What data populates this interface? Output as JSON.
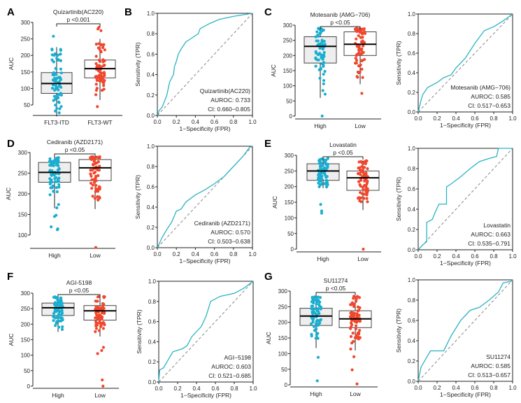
{
  "colors": {
    "high": "#1aaed0",
    "low": "#f0472e",
    "roc_line": "#2ab4c2",
    "diagonal": "#888888",
    "box_fill_high": "#eeeeee",
    "box_fill_low": "#ffffff"
  },
  "chart_data": [
    {
      "panel": "A",
      "type": "box",
      "title": "Quizartinib(AC220)",
      "pvalue": "p <0.001",
      "ylabel": "AUC",
      "yticks": [
        50,
        100,
        150,
        200,
        250,
        300
      ],
      "categories": [
        "FLT3-ITD",
        "FLT3-WT"
      ],
      "groups": [
        {
          "q1": 85,
          "median": 115,
          "q3": 148,
          "whisker_low": 15,
          "whisker_high": 225,
          "min": 15,
          "max": 258,
          "outliers": [
            258
          ]
        },
        {
          "q1": 132,
          "median": 160,
          "q3": 186,
          "whisker_low": 65,
          "whisker_high": 250,
          "min": 45,
          "max": 285,
          "outliers": [
            285,
            280,
            275,
            45
          ]
        }
      ]
    },
    {
      "panel": "B",
      "type": "line",
      "legend": [
        "Quizartinib(AC220)",
        "AUROC: 0.733",
        "CI: 0.660−0.805"
      ],
      "xlabel": "1−Specificity (FPR)",
      "ylabel": "Sensitivity (TPR)",
      "ticks": [
        0,
        0.2,
        0.4,
        0.6,
        0.8,
        1.0
      ],
      "tick_labels": [
        "0.0",
        "0.2",
        "0.4",
        "0.6",
        "0.8",
        "1.0"
      ],
      "points": [
        [
          0,
          0
        ],
        [
          0.02,
          0.05
        ],
        [
          0.05,
          0.08
        ],
        [
          0.08,
          0.15
        ],
        [
          0.1,
          0.2
        ],
        [
          0.13,
          0.33
        ],
        [
          0.17,
          0.4
        ],
        [
          0.18,
          0.48
        ],
        [
          0.2,
          0.53
        ],
        [
          0.22,
          0.6
        ],
        [
          0.25,
          0.65
        ],
        [
          0.3,
          0.72
        ],
        [
          0.35,
          0.75
        ],
        [
          0.43,
          0.8
        ],
        [
          0.45,
          0.85
        ],
        [
          0.55,
          0.9
        ],
        [
          0.65,
          0.94
        ],
        [
          0.8,
          0.97
        ],
        [
          1,
          1
        ]
      ]
    },
    {
      "panel": "C",
      "type": "box",
      "title": "Motesanib (AMG−706)",
      "pvalue": "p <0.05",
      "ylabel": "AUC",
      "yticks": [
        0,
        50,
        100,
        150,
        200,
        250,
        300
      ],
      "categories": [
        "High",
        "Low"
      ],
      "groups": [
        {
          "q1": 175,
          "median": 230,
          "q3": 262,
          "whisker_low": 60,
          "whisker_high": 290,
          "min": 0,
          "max": 290,
          "outliers": [
            0
          ]
        },
        {
          "q1": 200,
          "median": 237,
          "q3": 278,
          "whisker_low": 105,
          "whisker_high": 290,
          "min": 75,
          "max": 290,
          "outliers": [
            75
          ]
        }
      ]
    },
    {
      "panel": "C-roc",
      "type": "line",
      "legend": [
        "Motesanib (AMG−706)",
        "AUROC: 0.585",
        "CI: 0.517−0.653"
      ],
      "xlabel": "1−Specificity (FPR)",
      "ylabel": "Sensitivity (TPR)",
      "ticks": [
        0,
        0.2,
        0.4,
        0.6,
        0.8,
        1.0
      ],
      "tick_labels": [
        "0.0",
        "0.2",
        "0.4",
        "0.6",
        "0.8",
        "1.0"
      ],
      "points": [
        [
          0,
          0
        ],
        [
          0.03,
          0.12
        ],
        [
          0.05,
          0.18
        ],
        [
          0.1,
          0.25
        ],
        [
          0.2,
          0.3
        ],
        [
          0.27,
          0.35
        ],
        [
          0.35,
          0.38
        ],
        [
          0.4,
          0.45
        ],
        [
          0.5,
          0.55
        ],
        [
          0.6,
          0.7
        ],
        [
          0.7,
          0.83
        ],
        [
          0.8,
          0.87
        ],
        [
          0.9,
          0.93
        ],
        [
          1,
          1
        ]
      ]
    },
    {
      "panel": "D",
      "type": "box",
      "title": "Cediranib (AZD2171)",
      "pvalue": "p <0.05",
      "ylabel": "AUC",
      "yticks": [
        100,
        150,
        200,
        250,
        300
      ],
      "categories": [
        "High",
        "Low"
      ],
      "groups": [
        {
          "q1": 228,
          "median": 252,
          "q3": 276,
          "whisker_low": 165,
          "whisker_high": 290,
          "min": 113,
          "max": 290,
          "outliers": [
            148,
            145,
            120,
            115,
            113
          ]
        },
        {
          "q1": 232,
          "median": 263,
          "q3": 283,
          "whisker_low": 163,
          "whisker_high": 290,
          "min": 70,
          "max": 290,
          "outliers": [
            70
          ]
        }
      ]
    },
    {
      "panel": "D-roc",
      "type": "line",
      "legend": [
        "Cediranib (AZD2171)",
        "AUROC: 0.570",
        "CI: 0.503−0.638"
      ],
      "xlabel": "1−Specificity (FPR)",
      "ylabel": "Sensitivity (TPR)",
      "ticks": [
        0,
        0.2,
        0.4,
        0.6,
        0.8,
        1.0
      ],
      "tick_labels": [
        "0.0",
        "0.2",
        "0.4",
        "0.6",
        "0.8",
        "1.0"
      ],
      "points": [
        [
          0,
          0
        ],
        [
          0.05,
          0.1
        ],
        [
          0.1,
          0.18
        ],
        [
          0.15,
          0.25
        ],
        [
          0.2,
          0.36
        ],
        [
          0.25,
          0.38
        ],
        [
          0.3,
          0.45
        ],
        [
          0.4,
          0.52
        ],
        [
          0.5,
          0.57
        ],
        [
          0.6,
          0.63
        ],
        [
          0.7,
          0.7
        ],
        [
          0.8,
          0.8
        ],
        [
          0.9,
          0.9
        ],
        [
          0.97,
          0.99
        ],
        [
          1,
          1
        ]
      ]
    },
    {
      "panel": "E",
      "type": "box",
      "title": "Lovastatin",
      "pvalue": "p <0.05",
      "ylabel": "AUC",
      "yticks": [
        0,
        50,
        100,
        150,
        200,
        250,
        300
      ],
      "categories": [
        "High",
        "Low"
      ],
      "groups": [
        {
          "q1": 220,
          "median": 250,
          "q3": 273,
          "whisker_low": 195,
          "whisker_high": 290,
          "min": 115,
          "max": 290,
          "outliers": [
            143,
            122,
            115
          ]
        },
        {
          "q1": 188,
          "median": 228,
          "q3": 250,
          "whisker_low": 125,
          "whisker_high": 283,
          "min": 0,
          "max": 283,
          "outliers": [
            0
          ]
        }
      ]
    },
    {
      "panel": "E-roc",
      "type": "line",
      "legend": [
        "Lovastatin",
        "AUROC: 0.663",
        "CI: 0.535−0.791"
      ],
      "xlabel": "1−Specificity (FPR)",
      "ylabel": "Sensitivity (TPR)",
      "ticks": [
        0,
        0.2,
        0.4,
        0.6,
        0.8,
        1.0
      ],
      "tick_labels": [
        "0.0",
        "0.2",
        "0.4",
        "0.6",
        "0.8",
        "1.0"
      ],
      "points": [
        [
          0,
          0
        ],
        [
          0.05,
          0.05
        ],
        [
          0.09,
          0.08
        ],
        [
          0.09,
          0.27
        ],
        [
          0.15,
          0.3
        ],
        [
          0.18,
          0.37
        ],
        [
          0.22,
          0.45
        ],
        [
          0.3,
          0.45
        ],
        [
          0.3,
          0.62
        ],
        [
          0.35,
          0.65
        ],
        [
          0.45,
          0.72
        ],
        [
          0.55,
          0.8
        ],
        [
          0.65,
          0.87
        ],
        [
          0.75,
          0.9
        ],
        [
          0.83,
          0.92
        ],
        [
          0.85,
          1
        ],
        [
          1,
          1
        ]
      ]
    },
    {
      "panel": "F",
      "type": "box",
      "title": "AGI-5198",
      "pvalue": "p <0.05",
      "ylabel": "AUC",
      "yticks": [
        0,
        50,
        100,
        150,
        200,
        250,
        300
      ],
      "categories": [
        "High",
        "Low"
      ],
      "groups": [
        {
          "q1": 228,
          "median": 253,
          "q3": 268,
          "whisker_low": 175,
          "whisker_high": 290,
          "min": 168,
          "max": 290,
          "outliers": []
        },
        {
          "q1": 213,
          "median": 243,
          "q3": 260,
          "whisker_low": 160,
          "whisker_high": 290,
          "min": 0,
          "max": 290,
          "outliers": [
            125,
            115,
            105,
            20,
            0
          ]
        }
      ]
    },
    {
      "panel": "F-roc",
      "type": "line",
      "legend": [
        "AGI−5198",
        "AUROC: 0.603",
        "CI: 0.521−0.685"
      ],
      "xlabel": "1−Specificity (FPR)",
      "ylabel": "Sensitivity (TPR)",
      "ticks": [
        0,
        0.2,
        0.4,
        0.6,
        0.8,
        1.0
      ],
      "tick_labels": [
        "0.0",
        "0.2",
        "0.4",
        "0.6",
        "0.8",
        "1.0"
      ],
      "points": [
        [
          0,
          0
        ],
        [
          0.01,
          0.12
        ],
        [
          0.05,
          0.14
        ],
        [
          0.1,
          0.22
        ],
        [
          0.15,
          0.3
        ],
        [
          0.25,
          0.33
        ],
        [
          0.3,
          0.36
        ],
        [
          0.35,
          0.45
        ],
        [
          0.45,
          0.55
        ],
        [
          0.5,
          0.65
        ],
        [
          0.55,
          0.8
        ],
        [
          0.65,
          0.85
        ],
        [
          0.8,
          0.88
        ],
        [
          0.9,
          0.93
        ],
        [
          1,
          1
        ]
      ]
    },
    {
      "panel": "G",
      "type": "box",
      "title": "SU11274",
      "pvalue": "p <0.05",
      "ylabel": "AUC",
      "yticks": [
        0,
        50,
        100,
        150,
        200,
        250,
        300
      ],
      "categories": [
        "High",
        "Low"
      ],
      "groups": [
        {
          "q1": 190,
          "median": 220,
          "q3": 245,
          "whisker_low": 118,
          "whisker_high": 290,
          "min": 13,
          "max": 290,
          "outliers": [
            88,
            13
          ]
        },
        {
          "q1": 183,
          "median": 211,
          "q3": 237,
          "whisker_low": 110,
          "whisker_high": 285,
          "min": 3,
          "max": 285,
          "outliers": [
            90,
            48,
            3
          ]
        }
      ]
    },
    {
      "panel": "G-roc",
      "type": "line",
      "legend": [
        "SU11274",
        "AUROC: 0.585",
        "CI: 0.513−0.657"
      ],
      "xlabel": "1−Specificity (FPR)",
      "ylabel": "Sensitivity (TPR)",
      "ticks": [
        0,
        0.2,
        0.4,
        0.6,
        0.8,
        1.0
      ],
      "tick_labels": [
        "0.0",
        "0.2",
        "0.4",
        "0.6",
        "0.8",
        "1.0"
      ],
      "points": [
        [
          0,
          0
        ],
        [
          0.03,
          0.14
        ],
        [
          0.08,
          0.22
        ],
        [
          0.13,
          0.3
        ],
        [
          0.27,
          0.3
        ],
        [
          0.35,
          0.45
        ],
        [
          0.45,
          0.6
        ],
        [
          0.55,
          0.7
        ],
        [
          0.65,
          0.73
        ],
        [
          0.75,
          0.8
        ],
        [
          0.85,
          0.88
        ],
        [
          0.9,
          0.97
        ],
        [
          1,
          0.99
        ]
      ]
    }
  ]
}
